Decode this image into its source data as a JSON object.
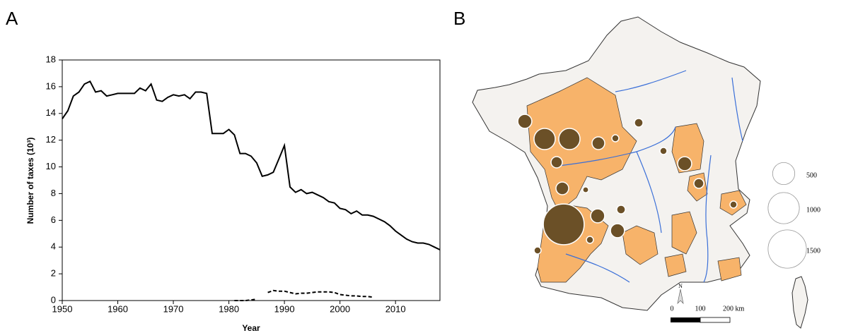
{
  "chart_data": [
    {
      "type": "line",
      "panel": "A",
      "x_label": "Year",
      "y_label": "Number of taxes (10³)",
      "x": [
        1950,
        1951,
        1952,
        1953,
        1954,
        1955,
        1956,
        1957,
        1958,
        1959,
        1960,
        1961,
        1962,
        1963,
        1964,
        1965,
        1966,
        1967,
        1968,
        1969,
        1970,
        1971,
        1972,
        1973,
        1974,
        1975,
        1976,
        1977,
        1978,
        1979,
        1980,
        1981,
        1982,
        1983,
        1984,
        1985,
        1986,
        1987,
        1988,
        1989,
        1990,
        1991,
        1992,
        1993,
        1994,
        1995,
        1996,
        1997,
        1998,
        1999,
        2000,
        2001,
        2002,
        2003,
        2004,
        2005,
        2006,
        2007,
        2008,
        2009,
        2010,
        2011,
        2012,
        2013,
        2014,
        2015,
        2016,
        2017,
        2018
      ],
      "series": [
        {
          "color": "#000000",
          "dash": false,
          "values": [
            13.6,
            14.2,
            15.3,
            15.6,
            16.2,
            16.4,
            15.6,
            15.7,
            15.3,
            15.4,
            15.5,
            15.5,
            15.5,
            15.5,
            15.9,
            15.7,
            16.2,
            15.0,
            14.9,
            15.2,
            15.4,
            15.3,
            15.4,
            15.1,
            15.6,
            15.6,
            15.5,
            12.5,
            12.5,
            12.5,
            12.8,
            12.4,
            11.0,
            11.0,
            10.8,
            10.3,
            9.3,
            9.4,
            9.6,
            10.6,
            11.6,
            8.5,
            8.1,
            8.3,
            8.0,
            8.1,
            7.9,
            7.7,
            7.4,
            7.3,
            6.9,
            6.8,
            6.5,
            6.7,
            6.4,
            6.4,
            6.3,
            6.1,
            5.9,
            5.6,
            5.2,
            4.9,
            4.6,
            4.4,
            4.3,
            4.3,
            4.2,
            4.0,
            3.8
          ]
        },
        {
          "color": "#000000",
          "dash": true,
          "values": [
            null,
            null,
            null,
            null,
            null,
            null,
            null,
            null,
            null,
            null,
            null,
            null,
            null,
            null,
            null,
            null,
            null,
            null,
            null,
            null,
            null,
            null,
            null,
            null,
            null,
            null,
            null,
            null,
            null,
            null,
            null,
            0,
            0,
            0,
            0.05,
            0.1,
            null,
            0.6,
            0.75,
            0.7,
            0.7,
            0.6,
            0.5,
            0.55,
            0.55,
            0.6,
            0.65,
            0.65,
            0.65,
            0.6,
            0.45,
            0.4,
            0.35,
            0.35,
            0.3,
            0.3,
            0.25,
            null,
            null,
            null,
            null,
            null,
            null,
            null,
            null,
            null,
            null,
            null,
            null
          ]
        }
      ],
      "xlim": [
        1950,
        2018
      ],
      "xticks": [
        1950,
        1960,
        1970,
        1980,
        1990,
        2000,
        2010
      ],
      "ylim": [
        0,
        18
      ],
      "yticks": [
        0,
        2,
        4,
        6,
        8,
        10,
        12,
        14,
        16,
        18
      ]
    },
    {
      "type": "map",
      "panel": "B",
      "bubble_color": "#6b5027",
      "region_color": "#f7b36a",
      "sizes": [
        1700,
        460,
        460,
        200,
        165,
        130,
        165,
        200,
        200,
        200,
        100,
        75,
        75,
        50,
        50,
        50,
        50,
        50,
        35
      ],
      "size_legend": [
        500,
        1000,
        1500
      ],
      "scale_labels": [
        "0",
        "100",
        "200 km"
      ],
      "north": "N"
    }
  ]
}
